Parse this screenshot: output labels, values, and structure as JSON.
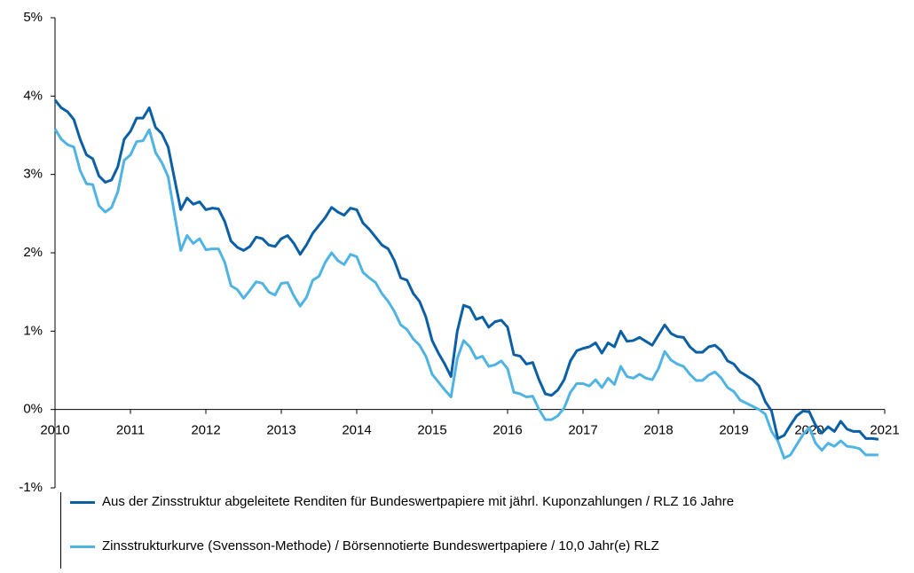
{
  "chart_data": {
    "type": "line",
    "x": [
      2010,
      2010.083,
      2010.167,
      2010.25,
      2010.333,
      2010.417,
      2010.5,
      2010.583,
      2010.667,
      2010.75,
      2010.833,
      2010.917,
      2011,
      2011.083,
      2011.167,
      2011.25,
      2011.333,
      2011.417,
      2011.5,
      2011.583,
      2011.667,
      2011.75,
      2011.833,
      2011.917,
      2012,
      2012.083,
      2012.167,
      2012.25,
      2012.333,
      2012.417,
      2012.5,
      2012.583,
      2012.667,
      2012.75,
      2012.833,
      2012.917,
      2013,
      2013.083,
      2013.167,
      2013.25,
      2013.333,
      2013.417,
      2013.5,
      2013.583,
      2013.667,
      2013.75,
      2013.833,
      2013.917,
      2014,
      2014.083,
      2014.167,
      2014.25,
      2014.333,
      2014.417,
      2014.5,
      2014.583,
      2014.667,
      2014.75,
      2014.833,
      2014.917,
      2015,
      2015.083,
      2015.167,
      2015.25,
      2015.333,
      2015.417,
      2015.5,
      2015.583,
      2015.667,
      2015.75,
      2015.833,
      2015.917,
      2016,
      2016.083,
      2016.167,
      2016.25,
      2016.333,
      2016.417,
      2016.5,
      2016.583,
      2016.667,
      2016.75,
      2016.833,
      2016.917,
      2017,
      2017.083,
      2017.167,
      2017.25,
      2017.333,
      2017.417,
      2017.5,
      2017.583,
      2017.667,
      2017.75,
      2017.833,
      2017.917,
      2018,
      2018.083,
      2018.167,
      2018.25,
      2018.333,
      2018.417,
      2018.5,
      2018.583,
      2018.667,
      2018.75,
      2018.833,
      2018.917,
      2019,
      2019.083,
      2019.167,
      2019.25,
      2019.333,
      2019.417,
      2019.5,
      2019.583,
      2019.667,
      2019.75,
      2019.833,
      2019.917,
      2020,
      2020.083,
      2020.167,
      2020.25,
      2020.333,
      2020.417,
      2020.5,
      2020.583,
      2020.667,
      2020.75,
      2020.833,
      2020.917
    ],
    "series": [
      {
        "name": "Aus der Zinsstruktur abgeleitete Renditen für Bundeswertpapiere mit jährl. Kuponzahlungen / RLZ 16 Jahre",
        "color": "#0b5fa5",
        "values": [
          3.95,
          3.85,
          3.8,
          3.7,
          3.45,
          3.25,
          3.2,
          2.98,
          2.9,
          2.93,
          3.1,
          3.45,
          3.55,
          3.72,
          3.72,
          3.85,
          3.6,
          3.52,
          3.35,
          2.95,
          2.55,
          2.7,
          2.62,
          2.65,
          2.55,
          2.57,
          2.56,
          2.4,
          2.15,
          2.07,
          2.03,
          2.08,
          2.2,
          2.18,
          2.1,
          2.08,
          2.18,
          2.22,
          2.12,
          1.98,
          2.1,
          2.25,
          2.35,
          2.45,
          2.58,
          2.52,
          2.48,
          2.57,
          2.55,
          2.38,
          2.3,
          2.2,
          2.1,
          2.05,
          1.9,
          1.68,
          1.65,
          1.48,
          1.38,
          1.18,
          0.88,
          0.72,
          0.58,
          0.42,
          1.0,
          1.33,
          1.3,
          1.15,
          1.18,
          1.05,
          1.12,
          1.14,
          1.05,
          0.7,
          0.68,
          0.58,
          0.6,
          0.38,
          0.2,
          0.18,
          0.25,
          0.38,
          0.62,
          0.75,
          0.78,
          0.8,
          0.85,
          0.72,
          0.85,
          0.8,
          1.0,
          0.87,
          0.88,
          0.92,
          0.87,
          0.82,
          0.95,
          1.08,
          0.97,
          0.93,
          0.92,
          0.8,
          0.73,
          0.73,
          0.8,
          0.82,
          0.75,
          0.62,
          0.58,
          0.48,
          0.43,
          0.38,
          0.3,
          0.1,
          -0.02,
          -0.37,
          -0.33,
          -0.2,
          -0.08,
          -0.02,
          -0.03,
          -0.2,
          -0.3,
          -0.22,
          -0.28,
          -0.15,
          -0.25,
          -0.28,
          -0.28,
          -0.37,
          -0.37,
          -0.38
        ]
      },
      {
        "name": "Zinsstrukturkurve (Svensson-Methode) / Börsennotierte Bundeswertpapiere / 10,0 Jahr(e) RLZ",
        "color": "#4fb3e3",
        "values": [
          3.58,
          3.45,
          3.38,
          3.35,
          3.05,
          2.88,
          2.87,
          2.6,
          2.52,
          2.58,
          2.78,
          3.18,
          3.25,
          3.42,
          3.43,
          3.57,
          3.28,
          3.15,
          2.97,
          2.5,
          2.03,
          2.22,
          2.12,
          2.18,
          2.04,
          2.05,
          2.05,
          1.88,
          1.58,
          1.53,
          1.42,
          1.52,
          1.63,
          1.61,
          1.5,
          1.46,
          1.61,
          1.62,
          1.45,
          1.32,
          1.43,
          1.65,
          1.7,
          1.88,
          2.0,
          1.9,
          1.85,
          1.98,
          1.95,
          1.75,
          1.68,
          1.62,
          1.48,
          1.38,
          1.25,
          1.08,
          1.02,
          0.9,
          0.82,
          0.68,
          0.45,
          0.35,
          0.25,
          0.16,
          0.65,
          0.88,
          0.8,
          0.65,
          0.68,
          0.55,
          0.57,
          0.62,
          0.52,
          0.22,
          0.2,
          0.16,
          0.17,
          0.0,
          -0.13,
          -0.13,
          -0.08,
          0.02,
          0.22,
          0.33,
          0.33,
          0.3,
          0.38,
          0.28,
          0.4,
          0.32,
          0.55,
          0.42,
          0.4,
          0.45,
          0.4,
          0.38,
          0.52,
          0.74,
          0.63,
          0.58,
          0.55,
          0.45,
          0.37,
          0.37,
          0.44,
          0.48,
          0.4,
          0.28,
          0.23,
          0.12,
          0.08,
          0.04,
          0.0,
          -0.06,
          -0.28,
          -0.4,
          -0.62,
          -0.58,
          -0.45,
          -0.32,
          -0.23,
          -0.43,
          -0.52,
          -0.43,
          -0.47,
          -0.4,
          -0.47,
          -0.48,
          -0.5,
          -0.58,
          -0.58,
          -0.58
        ]
      }
    ],
    "xlim": [
      2010,
      2021
    ],
    "xticks": [
      2010,
      2011,
      2012,
      2013,
      2014,
      2015,
      2016,
      2017,
      2018,
      2019,
      2020,
      2021
    ],
    "ylim": [
      -1,
      5
    ],
    "yticks": [
      {
        "value": -1,
        "label": "-1%"
      },
      {
        "value": 0,
        "label": "0%"
      },
      {
        "value": 1,
        "label": "1%"
      },
      {
        "value": 2,
        "label": "2%"
      },
      {
        "value": 3,
        "label": "3%"
      },
      {
        "value": 4,
        "label": "4%"
      },
      {
        "value": 5,
        "label": "5%"
      }
    ]
  }
}
